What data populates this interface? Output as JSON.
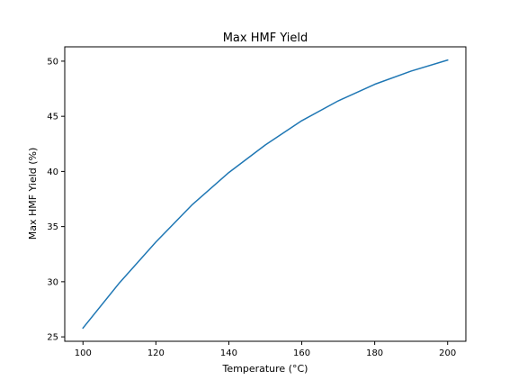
{
  "chart_data": {
    "type": "line",
    "title": "Max HMF Yield",
    "xlabel": "Temperature (°C)",
    "ylabel": "Max HMF Yield (%)",
    "xlim": [
      95,
      205
    ],
    "ylim": [
      24.6,
      51.3
    ],
    "xticks": [
      100,
      120,
      140,
      160,
      180,
      200
    ],
    "yticks": [
      25,
      30,
      35,
      40,
      45,
      50
    ],
    "xtick_labels": [
      "100",
      "120",
      "140",
      "160",
      "180",
      "200"
    ],
    "ytick_labels": [
      "25",
      "30",
      "35",
      "40",
      "45",
      "50"
    ],
    "grid": false,
    "legend": "none",
    "series": [
      {
        "color": "#1f77b4",
        "x": [
          100,
          110,
          120,
          130,
          140,
          150,
          160,
          170,
          180,
          190,
          200
        ],
        "y": [
          25.8,
          29.9,
          33.6,
          37.0,
          39.9,
          42.4,
          44.6,
          46.4,
          47.9,
          49.1,
          50.1
        ]
      }
    ]
  }
}
